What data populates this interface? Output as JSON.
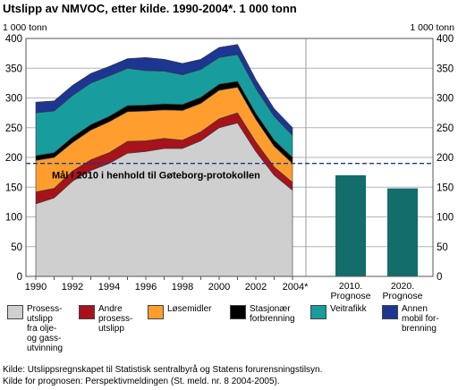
{
  "title": "Utslipp av NMVOC, etter kilde. 1990-2004*. 1 000 tonn",
  "chart_data": {
    "type": "area",
    "left_unit_label": "1 000 tonn",
    "right_unit_label": "1 000 tonn",
    "ylim": [
      0,
      400
    ],
    "yticks": [
      "0",
      "50",
      "100",
      "150",
      "200",
      "250",
      "300",
      "350",
      "400"
    ],
    "xlim": [
      1990,
      2004
    ],
    "x": [
      1990,
      1991,
      1992,
      1993,
      1994,
      1995,
      1996,
      1997,
      1998,
      1999,
      2000,
      2001,
      2002,
      2003,
      2004
    ],
    "xticks": [
      "1990",
      "1992",
      "1994",
      "1996",
      "1998",
      "2000",
      "2002",
      "2004*"
    ],
    "grid": true,
    "legend_position": "bottom",
    "series": [
      {
        "name": "Prosess-\nutslipp\nfra olje-\nog gass-\nutvinning",
        "color": "#cfcfcf",
        "values": [
          122,
          132,
          160,
          178,
          190,
          207,
          210,
          215,
          215,
          228,
          250,
          258,
          210,
          170,
          145
        ]
      },
      {
        "name": "Andre\nprosess-\nutslipp",
        "color": "#a6131b",
        "values": [
          20,
          16,
          17,
          18,
          18,
          20,
          18,
          17,
          14,
          15,
          15,
          17,
          16,
          14,
          13
        ]
      },
      {
        "name": "Løsemidler",
        "color": "#ff9e2f",
        "values": [
          53,
          52,
          48,
          50,
          52,
          50,
          50,
          48,
          50,
          48,
          48,
          43,
          38,
          35,
          32
        ]
      },
      {
        "name": "Stasjonær\nforbrenning",
        "color": "#000000",
        "values": [
          8,
          8,
          9,
          9,
          9,
          10,
          10,
          10,
          10,
          10,
          10,
          10,
          10,
          10,
          10
        ]
      },
      {
        "name": "Veitrafikk",
        "color": "#189c9d",
        "values": [
          72,
          70,
          70,
          70,
          68,
          63,
          58,
          55,
          50,
          47,
          45,
          45,
          42,
          40,
          37
        ]
      },
      {
        "name": "Annen\nmobil for-\nbrenning",
        "color": "#1c3691",
        "values": [
          18,
          17,
          17,
          16,
          16,
          16,
          22,
          20,
          19,
          17,
          17,
          17,
          15,
          13,
          13
        ]
      }
    ],
    "prognosis": {
      "color": "#126d6b",
      "categories": [
        "2010.\nPrognose",
        "2020.\nPrognose"
      ],
      "values": [
        170,
        148
      ]
    },
    "target_line": {
      "value": 190,
      "label": "Mål i 2010 i henhold til Gøteborg-protokollen",
      "color": "#1c3691"
    }
  },
  "sources": [
    "Kilde: Utslippsregnskapet til Statistisk sentralbyrå og Statens forurensningstilsyn.",
    "Kilde for prognosen: Perspektivmeldingen (St. meld. nr. 8 2004-2005)."
  ]
}
